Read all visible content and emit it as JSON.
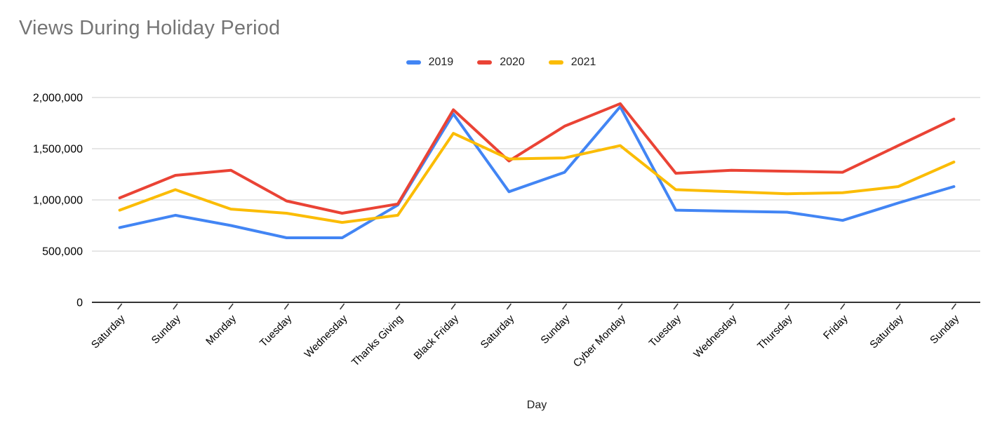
{
  "chart": {
    "title": "Views During Holiday Period",
    "x_axis_title": "Day"
  },
  "chart_data": {
    "type": "line",
    "title": "Views During Holiday Period",
    "xlabel": "Day",
    "ylabel": "",
    "ylim": [
      0,
      2000000
    ],
    "grid": true,
    "legend_position": "top-center",
    "y_ticks": [
      {
        "value": 2000000,
        "label": "2,000,000"
      },
      {
        "value": 1500000,
        "label": "1,500,000"
      },
      {
        "value": 1000000,
        "label": "1,000,000"
      },
      {
        "value": 500000,
        "label": "500,000"
      },
      {
        "value": 0,
        "label": "0"
      }
    ],
    "categories": [
      "Saturday",
      "Sunday",
      "Monday",
      "Tuesday",
      "Wednesday",
      "Thanks Giving",
      "Black Friday",
      "Saturday",
      "Sunday",
      "Cyber Monday",
      "Tuesday",
      "Wednesday",
      "Thursday",
      "Friday",
      "Saturday",
      "Sunday"
    ],
    "series": [
      {
        "name": "2019",
        "color": "#4285F4",
        "values": [
          730000,
          850000,
          750000,
          630000,
          630000,
          950000,
          1840000,
          1080000,
          1270000,
          1910000,
          900000,
          890000,
          880000,
          800000,
          970000,
          1130000
        ]
      },
      {
        "name": "2020",
        "color": "#EA4335",
        "values": [
          1020000,
          1240000,
          1290000,
          990000,
          870000,
          960000,
          1880000,
          1380000,
          1720000,
          1940000,
          1260000,
          1290000,
          1280000,
          1270000,
          1530000,
          1790000
        ]
      },
      {
        "name": "2021",
        "color": "#FBBC04",
        "values": [
          900000,
          1100000,
          910000,
          870000,
          780000,
          850000,
          1650000,
          1400000,
          1410000,
          1530000,
          1100000,
          1080000,
          1060000,
          1070000,
          1130000,
          1370000
        ]
      }
    ],
    "colors": {
      "grid": "#cccccc",
      "axis": "#333333",
      "tick": "#333333",
      "axis_text": "#000000",
      "title_text": "#757575"
    }
  }
}
